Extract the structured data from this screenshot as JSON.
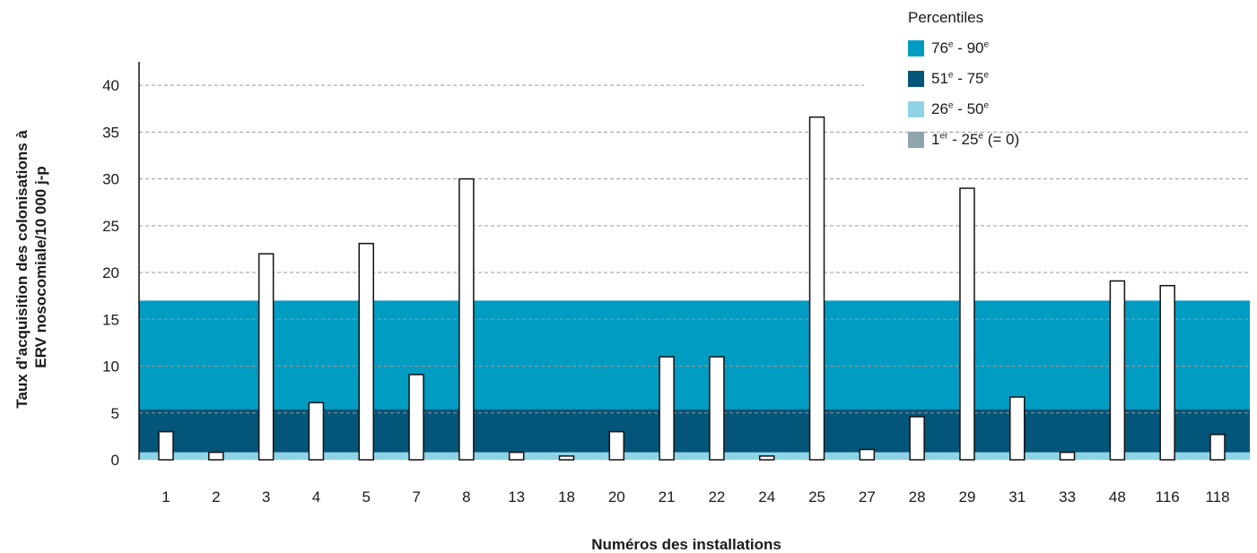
{
  "chart_data": {
    "type": "bar",
    "xlabel": "Numéros des installations",
    "ylabel_lines": [
      "Taux d’acquisition des colonisations à",
      "ERV nosocomiale/10 000 j-p"
    ],
    "categories": [
      "1",
      "2",
      "3",
      "4",
      "5",
      "7",
      "8",
      "13",
      "18",
      "20",
      "21",
      "22",
      "24",
      "25",
      "27",
      "28",
      "29",
      "31",
      "33",
      "48",
      "116",
      "118"
    ],
    "values": [
      3.0,
      0.8,
      22.0,
      6.1,
      23.1,
      9.1,
      30.0,
      0.8,
      0.4,
      3.0,
      11.0,
      11.0,
      0.4,
      36.6,
      1.1,
      4.6,
      29.0,
      6.7,
      0.8,
      19.1,
      18.6,
      2.7
    ],
    "yticks": [
      0,
      5,
      10,
      15,
      20,
      25,
      30,
      35,
      40
    ],
    "ylim": [
      0,
      42.5
    ],
    "grid": "horizontal dashed above percentile bands",
    "percentile_bands": [
      {
        "key": "p1",
        "from": 0,
        "to": 0,
        "color": "#8fa4ad"
      },
      {
        "key": "p2",
        "from": 0,
        "to": 0.8,
        "color": "#8fd3e6"
      },
      {
        "key": "p3",
        "from": 0.8,
        "to": 5.4,
        "color": "#03557a"
      },
      {
        "key": "p4",
        "from": 5.4,
        "to": 17.0,
        "color": "#009cc2"
      }
    ],
    "bar_color": "#ffffff",
    "bar_stroke": "#111111"
  },
  "legend": {
    "title": "Percentiles",
    "items": [
      {
        "key": "p4",
        "color": "#009cc2",
        "a": "76",
        "a_sup": "e",
        "sep": " - ",
        "b": "90",
        "b_sup": "e",
        "tail": ""
      },
      {
        "key": "p3",
        "color": "#03557a",
        "a": "51",
        "a_sup": "e",
        "sep": " - ",
        "b": "75",
        "b_sup": "e",
        "tail": ""
      },
      {
        "key": "p2",
        "color": "#8fd3e6",
        "a": "26",
        "a_sup": "e",
        "sep": " - ",
        "b": "50",
        "b_sup": "e",
        "tail": ""
      },
      {
        "key": "p1",
        "color": "#8fa4ad",
        "a": "1",
        "a_sup": "er",
        "sep": " - ",
        "b": "25",
        "b_sup": "e",
        "tail": " (= 0)"
      }
    ]
  }
}
